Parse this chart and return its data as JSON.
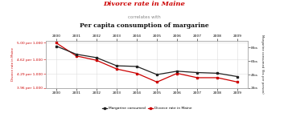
{
  "title_line1": "Divorce rate in Maine",
  "title_line2": "correlates with",
  "title_line3": "Per capita consumption of margarine",
  "years": [
    2000,
    2001,
    2002,
    2003,
    2004,
    2005,
    2006,
    2007,
    2008,
    2009
  ],
  "margarine": [
    8.2,
    7.0,
    6.5,
    5.3,
    5.2,
    4.0,
    4.5,
    4.3,
    4.2,
    3.7
  ],
  "divorce": [
    5.0,
    4.7,
    4.6,
    4.4,
    4.3,
    4.1,
    4.3,
    4.2,
    4.2,
    4.1
  ],
  "margarine_color": "#222222",
  "divorce_color": "#cc0000",
  "title1_color": "#cc0000",
  "title2_color": "#888888",
  "title3_color": "#111111",
  "ylim_left": [
    3.96,
    5.05
  ],
  "ylim_right": [
    2.0,
    9.0
  ],
  "yticks_left": [
    3.96,
    4.29,
    4.62,
    5.0
  ],
  "yticks_left_labels": [
    "3.96 per 1,000",
    "4.29 per 1,000",
    "4.62 per 1,000",
    "5.00 per 1,000"
  ],
  "yticks_right": [
    2,
    4,
    6,
    8
  ],
  "yticks_right_labels": [
    "2lbs",
    "4lbs",
    "6lbs",
    "8lbs"
  ],
  "legend_labels": [
    "Margarine consumed",
    "Divorce rate in Maine"
  ],
  "bg_color": "#ffffff",
  "grid_color": "#dddddd"
}
